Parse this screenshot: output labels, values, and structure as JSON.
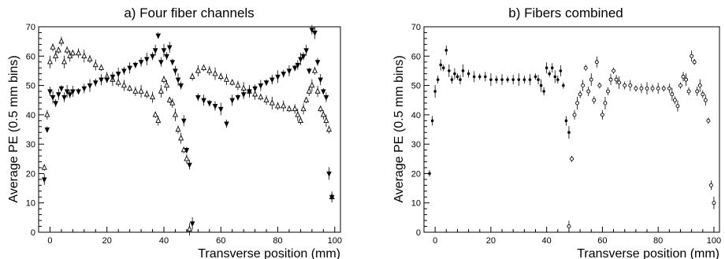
{
  "chart_data": [
    {
      "type": "scatter",
      "title": "a) Four fiber channels",
      "xlabel": "Transverse position (mm)",
      "ylabel": "Average PE (0.5 mm bins)",
      "xlim": [
        -4,
        102
      ],
      "ylim": [
        0,
        70
      ],
      "xticks": [
        0,
        20,
        40,
        60,
        80,
        100
      ],
      "yticks": [
        0,
        10,
        20,
        30,
        40,
        50,
        60,
        70
      ],
      "grid": false,
      "series": [
        {
          "marker": "open-triangle-up",
          "x": [
            -2,
            -1,
            0,
            1,
            2,
            3,
            4,
            5,
            6,
            7,
            8,
            10,
            12,
            14,
            16,
            18,
            20,
            22,
            24,
            26,
            28,
            30,
            32,
            34,
            36,
            37,
            38,
            39,
            40,
            41,
            42,
            43,
            44,
            45,
            46,
            47,
            48,
            49,
            50,
            52,
            54,
            56,
            58,
            60,
            62,
            64,
            66,
            68,
            70,
            72,
            74,
            76,
            78,
            80,
            82,
            84,
            86,
            87,
            88,
            89,
            90,
            91,
            92,
            93,
            94,
            95,
            96,
            97,
            98,
            99
          ],
          "y": [
            22,
            40,
            58,
            63,
            60,
            62,
            65,
            58,
            62,
            60,
            61,
            61,
            60,
            59,
            57,
            56,
            53,
            52,
            51,
            50,
            49,
            48,
            48,
            47,
            46,
            40,
            38,
            48,
            52,
            50,
            45,
            44,
            40,
            35,
            32,
            28,
            25,
            1,
            53,
            55,
            56,
            55,
            54,
            53,
            52,
            51,
            50,
            49,
            48,
            47,
            46,
            45,
            44,
            43,
            43,
            42,
            42,
            40,
            38,
            42,
            45,
            48,
            50,
            55,
            48,
            42,
            40,
            38,
            35,
            12
          ]
        },
        {
          "marker": "filled-triangle-down",
          "x": [
            -2,
            -1,
            0,
            1,
            2,
            3,
            4,
            5,
            6,
            7,
            8,
            10,
            12,
            14,
            16,
            18,
            20,
            22,
            24,
            26,
            28,
            30,
            32,
            34,
            36,
            37,
            38,
            39,
            40,
            41,
            42,
            43,
            44,
            45,
            46,
            47,
            48,
            49,
            50,
            52,
            54,
            56,
            58,
            60,
            62,
            64,
            66,
            68,
            70,
            72,
            74,
            76,
            78,
            80,
            82,
            84,
            86,
            87,
            88,
            89,
            90,
            91,
            92,
            93,
            94,
            95,
            96,
            97,
            98,
            99
          ],
          "y": [
            18,
            35,
            48,
            46,
            44,
            47,
            49,
            46,
            48,
            47,
            48,
            48,
            49,
            50,
            51,
            52,
            52,
            53,
            54,
            55,
            56,
            57,
            58,
            59,
            60,
            62,
            67,
            58,
            62,
            60,
            63,
            58,
            55,
            52,
            50,
            38,
            28,
            23,
            3,
            46,
            45,
            44,
            43,
            42,
            37,
            45,
            46,
            47,
            48,
            49,
            50,
            51,
            52,
            53,
            54,
            55,
            56,
            57,
            59,
            60,
            62,
            55,
            69,
            68,
            58,
            52,
            48,
            46,
            20,
            12
          ]
        }
      ]
    },
    {
      "type": "scatter",
      "title": "b) Fibers combined",
      "xlabel": "Transverse position (mm)",
      "ylabel": "Average PE (0.5 mm bins)",
      "xlim": [
        -4,
        102
      ],
      "ylim": [
        0,
        70
      ],
      "xticks": [
        0,
        20,
        40,
        60,
        80,
        100
      ],
      "yticks": [
        0,
        10,
        20,
        30,
        40,
        50,
        60,
        70
      ],
      "grid": false,
      "series": [
        {
          "marker": "filled-circle",
          "x": [
            -2,
            -1,
            0,
            1,
            2,
            3,
            4,
            5,
            6,
            7,
            8,
            9,
            10,
            12,
            14,
            16,
            18,
            20,
            22,
            24,
            26,
            28,
            30,
            32,
            34,
            36,
            37,
            38,
            39,
            40,
            41,
            42,
            43,
            44,
            45,
            46,
            47,
            48
          ],
          "y": [
            20,
            38,
            48,
            52,
            57,
            56,
            62,
            55,
            52,
            54,
            53,
            52,
            55,
            54,
            53,
            53,
            53,
            52,
            52,
            52,
            52,
            52,
            52,
            52,
            52,
            53,
            52,
            50,
            48,
            56,
            54,
            56,
            53,
            52,
            55,
            50,
            38,
            34
          ]
        },
        {
          "marker": "open-circle",
          "x": [
            48,
            49,
            50,
            51,
            52,
            53,
            54,
            55,
            56,
            57,
            58,
            59,
            60,
            61,
            62,
            63,
            64,
            65,
            66,
            68,
            70,
            72,
            74,
            76,
            78,
            80,
            82,
            84,
            85,
            86,
            87,
            88,
            89,
            90,
            91,
            92,
            93,
            94,
            95,
            96,
            97,
            98,
            99,
            100
          ],
          "y": [
            2,
            25,
            40,
            44,
            47,
            50,
            56,
            48,
            52,
            45,
            58,
            50,
            40,
            44,
            48,
            52,
            55,
            52,
            51,
            50,
            50,
            49,
            49,
            49,
            49,
            49,
            49,
            49,
            47,
            45,
            43,
            50,
            53,
            52,
            48,
            60,
            58,
            48,
            50,
            47,
            45,
            38,
            16,
            10
          ]
        }
      ]
    }
  ]
}
